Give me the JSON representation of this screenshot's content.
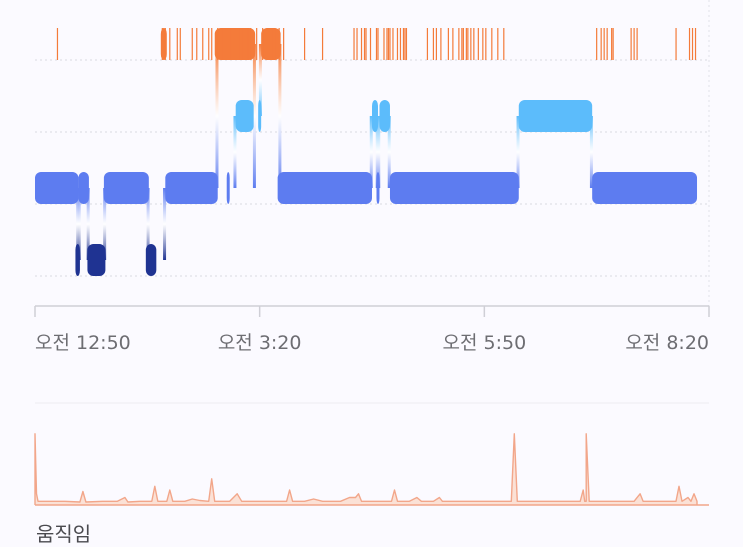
{
  "chart_data": [
    {
      "type": "hypnogram",
      "x_unit": "minutes after 오전 12:50",
      "xlim": [
        0,
        450
      ],
      "x_ticks": [
        {
          "t": 0,
          "label": "오전 12:50"
        },
        {
          "t": 150,
          "label": "오전 3:20"
        },
        {
          "t": 300,
          "label": "오전 5:50"
        },
        {
          "t": 450,
          "label": "오전 8:20"
        }
      ],
      "stages": [
        {
          "id": "awake",
          "color": "#f47b3a"
        },
        {
          "id": "rem",
          "color": "#5cbcfb"
        },
        {
          "id": "light",
          "color": "#5d7cf0"
        },
        {
          "id": "deep",
          "color": "#1f3392"
        }
      ],
      "segments": [
        {
          "stage": "light",
          "start": 0,
          "end": 29
        },
        {
          "stage": "deep",
          "start": 27,
          "end": 30
        },
        {
          "stage": "light",
          "start": 29,
          "end": 36
        },
        {
          "stage": "deep",
          "start": 35,
          "end": 47
        },
        {
          "stage": "light",
          "start": 46,
          "end": 76
        },
        {
          "stage": "deep",
          "start": 74,
          "end": 81
        },
        {
          "stage": "light",
          "start": 87,
          "end": 122
        },
        {
          "stage": "awake",
          "start": 84,
          "end": 88
        },
        {
          "stage": "awake",
          "start": 120,
          "end": 147
        },
        {
          "stage": "light",
          "start": 128,
          "end": 129
        },
        {
          "stage": "rem",
          "start": 134,
          "end": 146
        },
        {
          "stage": "rem",
          "start": 149,
          "end": 151
        },
        {
          "stage": "awake",
          "start": 151,
          "end": 164
        },
        {
          "stage": "light",
          "start": 162,
          "end": 225
        },
        {
          "stage": "rem",
          "start": 225,
          "end": 229
        },
        {
          "stage": "light",
          "start": 228,
          "end": 229
        },
        {
          "stage": "rem",
          "start": 230,
          "end": 237
        },
        {
          "stage": "light",
          "start": 237,
          "end": 323
        },
        {
          "stage": "rem",
          "start": 323,
          "end": 372
        },
        {
          "stage": "light",
          "start": 372,
          "end": 442
        }
      ],
      "awake_ticks": [
        15,
        85,
        87,
        90,
        95,
        97,
        105,
        108,
        112,
        116,
        118,
        122,
        125,
        128,
        130,
        133,
        136,
        139,
        142,
        144,
        148,
        152,
        155,
        158,
        160,
        163,
        166,
        180,
        192,
        213,
        215,
        218,
        220,
        221,
        224,
        228,
        229,
        233,
        235,
        236,
        237,
        239,
        242,
        244,
        246,
        247,
        248,
        262,
        266,
        268,
        271,
        276,
        279,
        283,
        285,
        286,
        288,
        289,
        291,
        293,
        296,
        299,
        301,
        305,
        309,
        313,
        375,
        378,
        380,
        382,
        385,
        386,
        398,
        400,
        402,
        428,
        437,
        439,
        441
      ]
    },
    {
      "type": "line",
      "name": "움직임",
      "x_unit": "minutes after 오전 12:50",
      "xlim": [
        0,
        450
      ],
      "ylim": [
        0,
        1
      ],
      "points": [
        [
          0,
          0.95
        ],
        [
          1,
          0.15
        ],
        [
          2,
          0.05
        ],
        [
          8,
          0.05
        ],
        [
          14,
          0.05
        ],
        [
          20,
          0.05
        ],
        [
          30,
          0.04
        ],
        [
          32,
          0.18
        ],
        [
          34,
          0.04
        ],
        [
          45,
          0.05
        ],
        [
          55,
          0.05
        ],
        [
          60,
          0.1
        ],
        [
          62,
          0.04
        ],
        [
          70,
          0.05
        ],
        [
          78,
          0.05
        ],
        [
          80,
          0.25
        ],
        [
          82,
          0.05
        ],
        [
          88,
          0.05
        ],
        [
          90,
          0.2
        ],
        [
          92,
          0.05
        ],
        [
          100,
          0.05
        ],
        [
          105,
          0.08
        ],
        [
          110,
          0.06
        ],
        [
          116,
          0.05
        ],
        [
          118,
          0.35
        ],
        [
          120,
          0.05
        ],
        [
          130,
          0.05
        ],
        [
          135,
          0.15
        ],
        [
          138,
          0.05
        ],
        [
          150,
          0.05
        ],
        [
          160,
          0.05
        ],
        [
          168,
          0.05
        ],
        [
          170,
          0.2
        ],
        [
          172,
          0.05
        ],
        [
          180,
          0.05
        ],
        [
          186,
          0.08
        ],
        [
          192,
          0.05
        ],
        [
          204,
          0.05
        ],
        [
          210,
          0.1
        ],
        [
          214,
          0.1
        ],
        [
          216,
          0.15
        ],
        [
          218,
          0.05
        ],
        [
          230,
          0.05
        ],
        [
          238,
          0.05
        ],
        [
          240,
          0.2
        ],
        [
          242,
          0.05
        ],
        [
          250,
          0.05
        ],
        [
          255,
          0.1
        ],
        [
          258,
          0.05
        ],
        [
          266,
          0.05
        ],
        [
          270,
          0.1
        ],
        [
          272,
          0.05
        ],
        [
          285,
          0.05
        ],
        [
          300,
          0.05
        ],
        [
          318,
          0.05
        ],
        [
          320,
          0.95
        ],
        [
          322,
          0.05
        ],
        [
          336,
          0.05
        ],
        [
          350,
          0.05
        ],
        [
          364,
          0.05
        ],
        [
          366,
          0.2
        ],
        [
          368,
          0.05
        ],
        [
          380,
          0.05
        ],
        [
          367,
          0.05
        ],
        [
          368,
          0.95
        ],
        [
          370,
          0.05
        ],
        [
          390,
          0.05
        ],
        [
          400,
          0.05
        ],
        [
          404,
          0.15
        ],
        [
          406,
          0.05
        ],
        [
          420,
          0.05
        ],
        [
          428,
          0.05
        ],
        [
          430,
          0.25
        ],
        [
          432,
          0.05
        ],
        [
          436,
          0.1
        ],
        [
          438,
          0.05
        ],
        [
          440,
          0.15
        ],
        [
          442,
          0.05
        ]
      ]
    }
  ],
  "labels": {
    "movement": "움직임"
  }
}
